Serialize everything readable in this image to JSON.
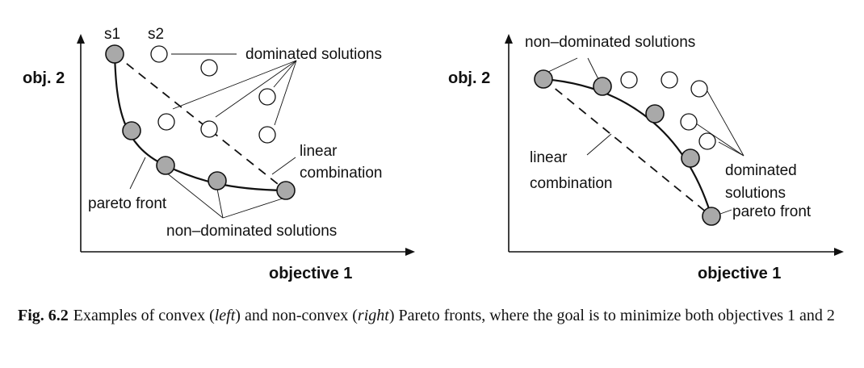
{
  "left_panel": {
    "y_axis_label": "obj. 2",
    "x_axis_label": "objective 1",
    "s1_label": "s1",
    "s2_label": "s2",
    "dominated_label": "dominated solutions",
    "linear_label_line1": "linear",
    "linear_label_line2": "combination",
    "pareto_label": "pareto front",
    "nondominated_label": "non–dominated solutions"
  },
  "right_panel": {
    "y_axis_label": "obj. 2",
    "x_axis_label": "objective 1",
    "nondominated_label": "non–dominated solutions",
    "linear_label_line1": "linear",
    "linear_label_line2": "combination",
    "dominated_label_line1": "dominated",
    "dominated_label_line2": "solutions",
    "pareto_label": "pareto front"
  },
  "caption": {
    "fig_number": "Fig. 6.2",
    "text_1": "Examples of convex (",
    "left_word": "left",
    "text_2": ") and non-convex (",
    "right_word": "right",
    "text_3": ") Pareto fronts, where the goal is to minimize both objectives 1 and 2"
  },
  "colors": {
    "non_dominated_fill": "#a9a9a9",
    "dominated_fill": "#ffffff",
    "line": "#111111"
  }
}
